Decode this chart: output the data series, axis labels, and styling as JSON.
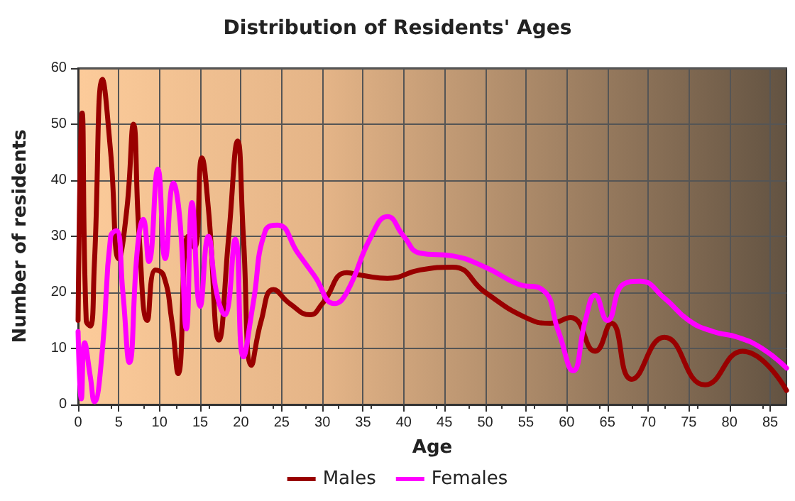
{
  "chart_data": {
    "type": "line",
    "title": "Distribution of Residents' Ages",
    "xlabel": "Age",
    "ylabel": "Number of residents",
    "xlim": [
      0,
      87
    ],
    "xticks": [
      0,
      5,
      10,
      15,
      20,
      25,
      30,
      35,
      40,
      45,
      50,
      55,
      60,
      65,
      70,
      75,
      80,
      85
    ],
    "ylim": [
      0,
      60
    ],
    "yticks": [
      0,
      10,
      20,
      30,
      40,
      50,
      60
    ],
    "grid": true,
    "legend": "bottom",
    "marker": "none",
    "line_style": "solid",
    "series": [
      {
        "name": "Males",
        "color": "#990000",
        "x": [
          0,
          0.5,
          1,
          1.5,
          2,
          3,
          4,
          5,
          6,
          6.8,
          7.5,
          8.5,
          9.5,
          10.5,
          11.5,
          12.3,
          13.5,
          14.3,
          15.2,
          16,
          17.3,
          18.5,
          19.6,
          20.3,
          21.3,
          22.5,
          24,
          26,
          28.5,
          30,
          33,
          35,
          38,
          42,
          46,
          50,
          55,
          58,
          60.5,
          63.5,
          65.5,
          68,
          72,
          77,
          81.6,
          87
        ],
        "values": [
          15,
          52,
          15,
          14,
          25,
          58,
          45,
          26,
          35,
          50,
          30,
          15,
          24,
          23,
          15,
          5.5,
          30,
          28,
          44,
          35,
          11.5,
          30,
          47,
          30,
          7,
          15,
          20.5,
          18,
          16,
          18,
          23.5,
          23,
          22.5,
          24,
          24.5,
          20,
          15.5,
          14.5,
          15.5,
          9.5,
          14.5,
          4.5,
          12,
          3.5,
          9.5,
          2.5
        ]
      },
      {
        "name": "Females",
        "color": "#ff00ff",
        "x": [
          0,
          0.4,
          0.8,
          1.5,
          2,
          3,
          4,
          4.7,
          5.5,
          6.3,
          7.3,
          8,
          8.7,
          9.8,
          10.7,
          11.7,
          12.5,
          13.3,
          14,
          15,
          16,
          17,
          18,
          19.3,
          20.3,
          21.5,
          23,
          24.5,
          27,
          29,
          31.5,
          33,
          36,
          38,
          40,
          42,
          46,
          50,
          54,
          57,
          59,
          60.8,
          62.3,
          63.5,
          65,
          67,
          69,
          72,
          75,
          78,
          81,
          84,
          87
        ],
        "values": [
          13,
          1,
          11,
          5,
          0.5,
          10,
          30,
          31,
          20,
          7.5,
          28,
          33,
          25.5,
          42,
          26,
          39.5,
          33,
          13.5,
          36,
          17.5,
          30,
          20,
          16,
          29.5,
          8.5,
          18,
          31,
          32,
          27,
          23,
          18,
          20,
          30,
          33.5,
          30,
          27,
          26.5,
          24.5,
          21.5,
          20.5,
          13,
          6,
          15,
          19.5,
          15,
          21.5,
          22,
          19,
          15,
          13,
          12,
          10,
          6.5
        ]
      }
    ]
  }
}
